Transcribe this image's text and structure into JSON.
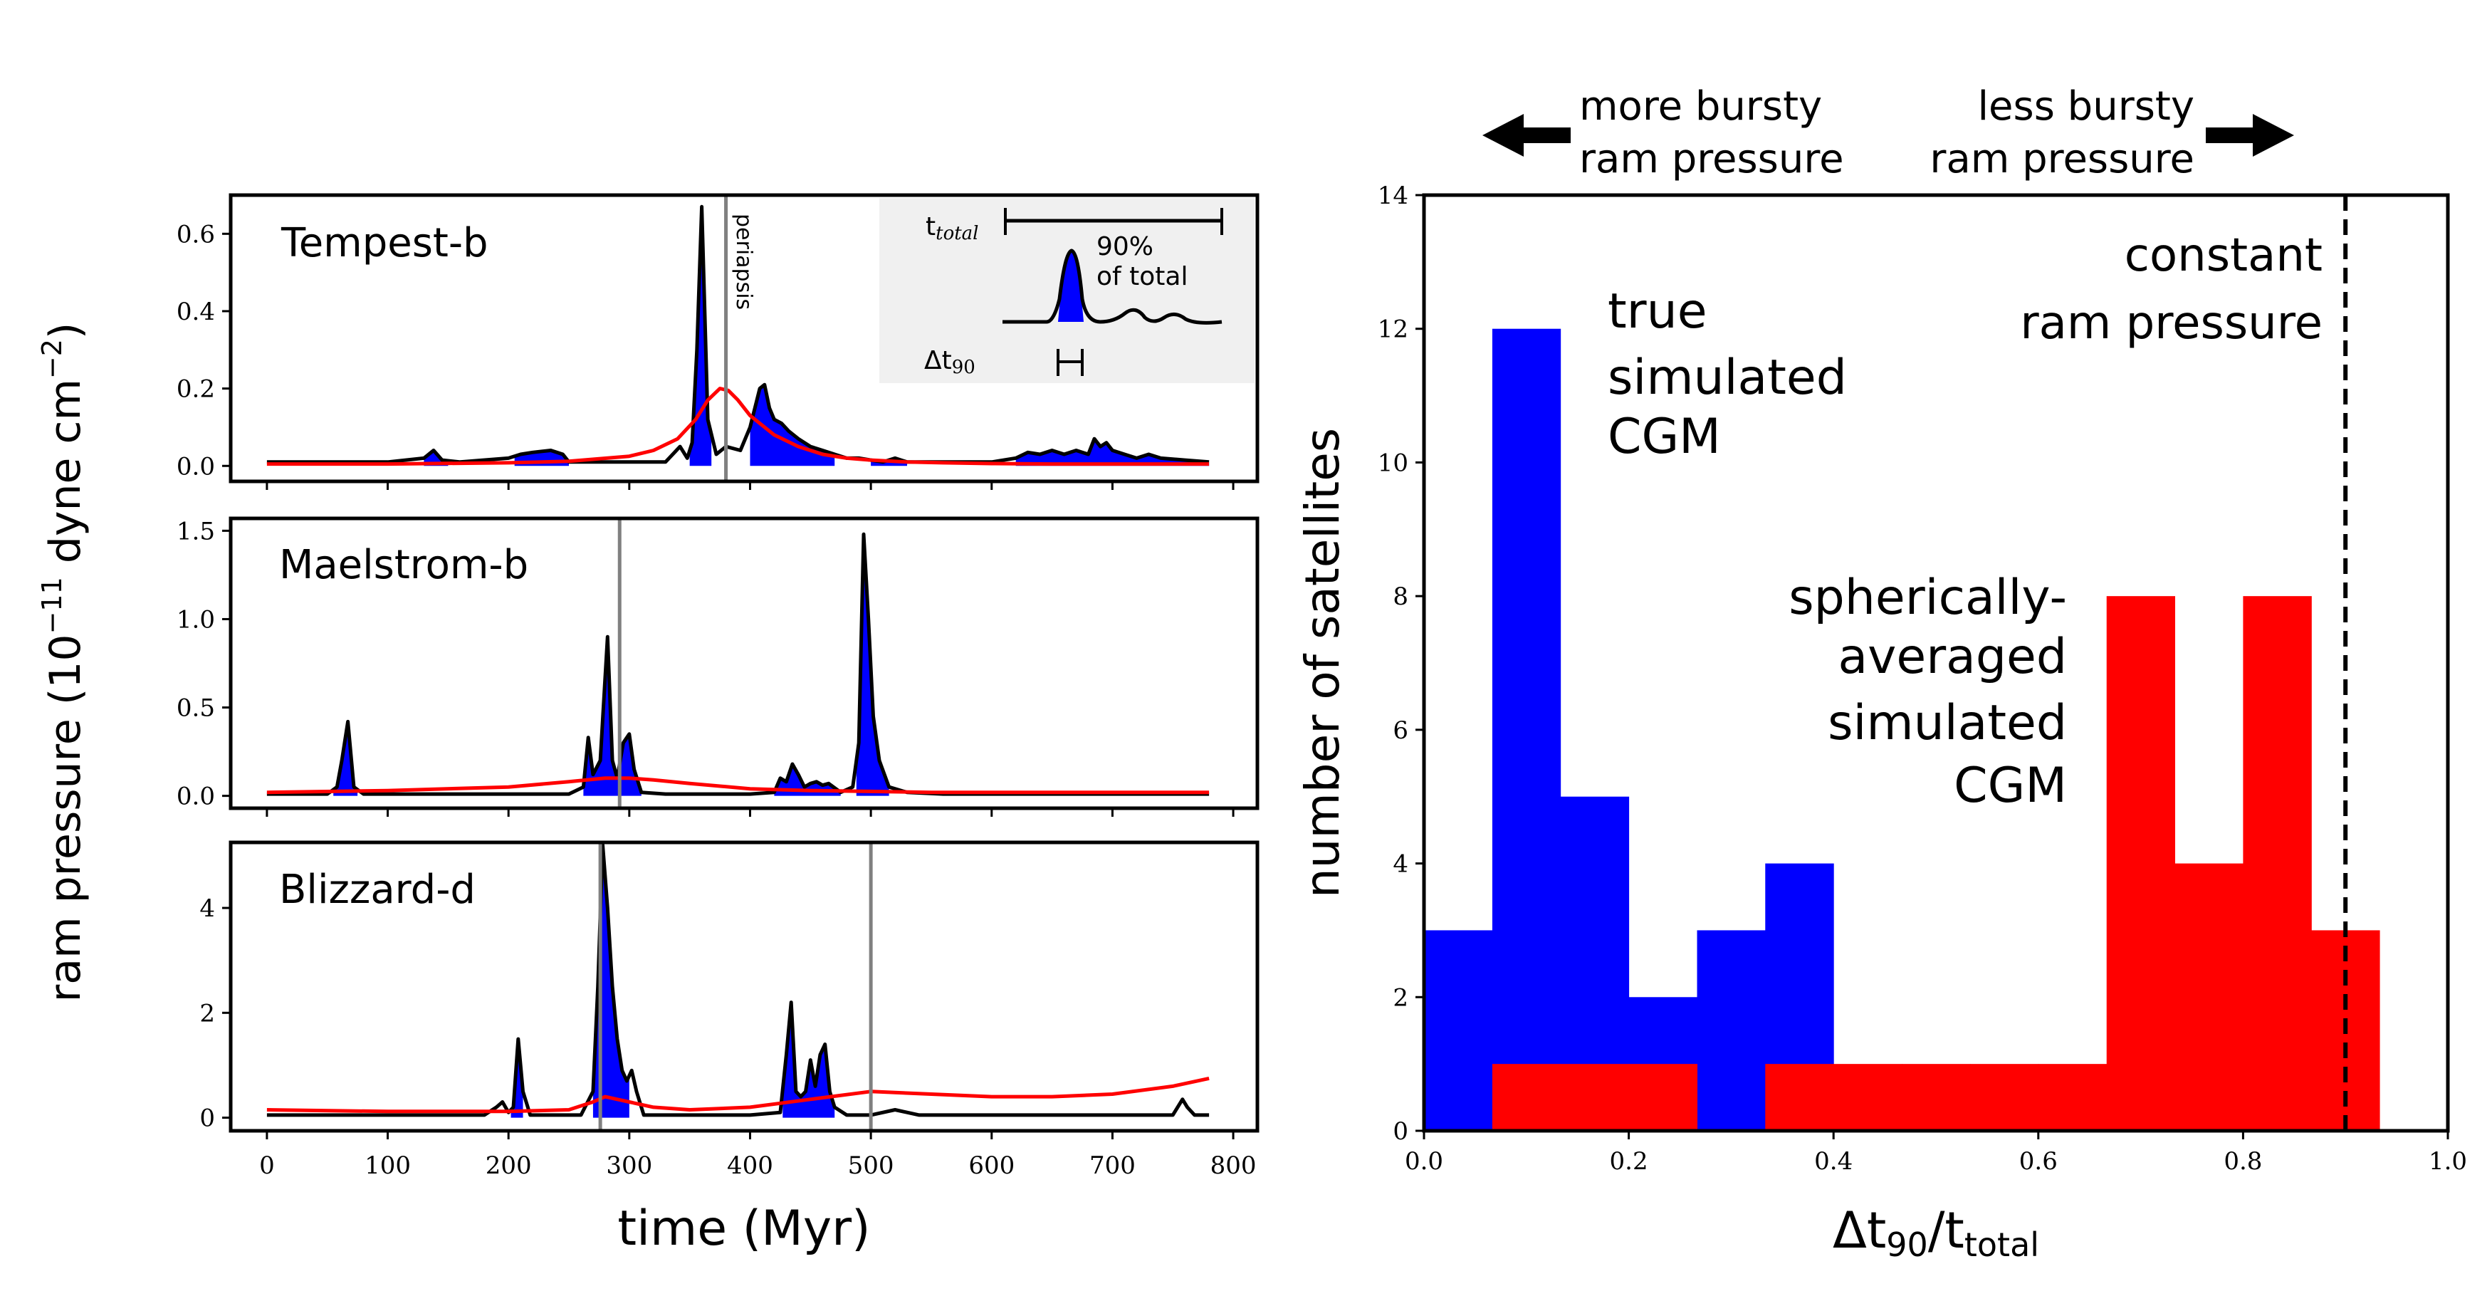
{
  "colors": {
    "true_cgm": "#0000ff",
    "spherical_cgm": "#ff0000",
    "line": "#000000",
    "periapsis": "#808080",
    "inset_bg": "#f0f0f0"
  },
  "chart_data": [
    {
      "type": "line",
      "panel": "Tempest-b",
      "title": "Tempest-b",
      "xlim": [
        -30,
        820
      ],
      "ylim": [
        -0.04,
        0.7
      ],
      "yticks": [
        "0.0",
        "0.2",
        "0.4",
        "0.6"
      ],
      "ytick_values": [
        0,
        0.2,
        0.4,
        0.6
      ],
      "periapsis_times": [
        380
      ],
      "periapsis_label": "periapsis",
      "inset": {
        "total_label": "t",
        "total_sub": "total",
        "pct_label": "90%",
        "pct_label2": "of total",
        "delta_label": "Δt",
        "delta_sub": "90"
      },
      "series": [
        {
          "name": "true simulated CGM",
          "color": "#000000",
          "x": [
            0,
            100,
            130,
            138,
            145,
            160,
            200,
            210,
            220,
            235,
            245,
            250,
            260,
            300,
            330,
            342,
            348,
            352,
            356,
            360,
            365,
            372,
            380,
            392,
            400,
            408,
            412,
            416,
            420,
            426,
            432,
            440,
            450,
            460,
            470,
            480,
            490,
            500,
            510,
            520,
            530,
            540,
            560,
            600,
            620,
            630,
            640,
            650,
            660,
            670,
            680,
            685,
            690,
            695,
            700,
            710,
            720,
            730,
            740,
            760,
            780
          ],
          "y": [
            0.01,
            0.01,
            0.02,
            0.04,
            0.015,
            0.01,
            0.02,
            0.03,
            0.035,
            0.04,
            0.03,
            0.01,
            0.01,
            0.01,
            0.01,
            0.05,
            0.02,
            0.06,
            0.3,
            0.67,
            0.12,
            0.03,
            0.05,
            0.04,
            0.1,
            0.2,
            0.21,
            0.15,
            0.12,
            0.11,
            0.09,
            0.07,
            0.05,
            0.04,
            0.03,
            0.02,
            0.02,
            0.015,
            0.01,
            0.02,
            0.01,
            0.01,
            0.01,
            0.01,
            0.02,
            0.035,
            0.03,
            0.04,
            0.03,
            0.04,
            0.03,
            0.07,
            0.05,
            0.06,
            0.04,
            0.03,
            0.02,
            0.03,
            0.02,
            0.015,
            0.01
          ]
        },
        {
          "name": "spherically-averaged simulated CGM",
          "color": "#ff0000",
          "x": [
            0,
            100,
            200,
            250,
            300,
            320,
            340,
            355,
            365,
            375,
            382,
            390,
            400,
            420,
            440,
            460,
            480,
            500,
            530,
            560,
            600,
            650,
            700,
            780
          ],
          "y": [
            0.005,
            0.005,
            0.008,
            0.012,
            0.025,
            0.04,
            0.07,
            0.12,
            0.17,
            0.2,
            0.195,
            0.17,
            0.13,
            0.08,
            0.05,
            0.03,
            0.02,
            0.015,
            0.01,
            0.008,
            0.006,
            0.005,
            0.005,
            0.005
          ]
        }
      ],
      "fill_intervals": [
        [
          130,
          150
        ],
        [
          205,
          250
        ],
        [
          350,
          368
        ],
        [
          400,
          470
        ],
        [
          500,
          530
        ],
        [
          620,
          780
        ]
      ]
    },
    {
      "type": "line",
      "panel": "Maelstrom-b",
      "title": "Maelstrom-b",
      "xlim": [
        -30,
        820
      ],
      "ylim": [
        -0.07,
        1.57
      ],
      "yticks": [
        "0.0",
        "0.5",
        "1.0",
        "1.5"
      ],
      "ytick_values": [
        0,
        0.5,
        1.0,
        1.5
      ],
      "periapsis_times": [
        292
      ],
      "series": [
        {
          "name": "true simulated CGM",
          "color": "#000000",
          "x": [
            0,
            50,
            58,
            62,
            67,
            72,
            80,
            100,
            200,
            250,
            262,
            266,
            270,
            276,
            282,
            286,
            290,
            295,
            300,
            304,
            310,
            330,
            400,
            420,
            425,
            430,
            435,
            440,
            445,
            450,
            455,
            460,
            465,
            475,
            485,
            490,
            494,
            498,
            502,
            507,
            515,
            530,
            560,
            600,
            700,
            780
          ],
          "y": [
            0.01,
            0.01,
            0.05,
            0.2,
            0.42,
            0.05,
            0.01,
            0.01,
            0.01,
            0.01,
            0.05,
            0.33,
            0.12,
            0.2,
            0.9,
            0.2,
            0.1,
            0.3,
            0.35,
            0.15,
            0.02,
            0.01,
            0.01,
            0.02,
            0.1,
            0.08,
            0.18,
            0.12,
            0.05,
            0.07,
            0.08,
            0.06,
            0.07,
            0.02,
            0.05,
            0.3,
            1.48,
            1.0,
            0.45,
            0.2,
            0.05,
            0.02,
            0.01,
            0.01,
            0.01,
            0.01
          ]
        },
        {
          "name": "spherically-averaged simulated CGM",
          "color": "#ff0000",
          "x": [
            0,
            100,
            200,
            250,
            280,
            300,
            320,
            350,
            400,
            450,
            500,
            550,
            600,
            700,
            780
          ],
          "y": [
            0.02,
            0.03,
            0.05,
            0.08,
            0.1,
            0.1,
            0.09,
            0.07,
            0.04,
            0.03,
            0.025,
            0.02,
            0.02,
            0.02,
            0.02
          ]
        }
      ],
      "fill_intervals": [
        [
          55,
          75
        ],
        [
          262,
          310
        ],
        [
          420,
          475
        ],
        [
          488,
          515
        ]
      ]
    },
    {
      "type": "line",
      "panel": "Blizzard-d",
      "title": "Blizzard-d",
      "xlim": [
        -30,
        820
      ],
      "ylim": [
        -0.25,
        5.25
      ],
      "yticks": [
        "0",
        "2",
        "4"
      ],
      "ytick_values": [
        0,
        2,
        4
      ],
      "periapsis_times": [
        276,
        500
      ],
      "series": [
        {
          "name": "true simulated CGM",
          "color": "#000000",
          "x": [
            0,
            100,
            180,
            190,
            195,
            200,
            204,
            208,
            212,
            218,
            240,
            260,
            270,
            274,
            278,
            282,
            286,
            290,
            294,
            298,
            302,
            306,
            312,
            330,
            400,
            425,
            430,
            434,
            438,
            442,
            446,
            450,
            454,
            458,
            462,
            466,
            470,
            480,
            500,
            520,
            540,
            600,
            700,
            750,
            758,
            762,
            768,
            780
          ],
          "y": [
            0.05,
            0.05,
            0.05,
            0.2,
            0.3,
            0.1,
            0.2,
            1.5,
            0.5,
            0.05,
            0.05,
            0.05,
            0.5,
            2.5,
            5.2,
            4.0,
            2.5,
            1.5,
            0.9,
            0.7,
            0.9,
            0.5,
            0.05,
            0.05,
            0.05,
            0.1,
            1.2,
            2.2,
            0.5,
            0.4,
            0.5,
            1.1,
            0.6,
            1.2,
            1.4,
            0.5,
            0.2,
            0.05,
            0.05,
            0.15,
            0.05,
            0.05,
            0.05,
            0.05,
            0.35,
            0.2,
            0.05,
            0.05
          ]
        },
        {
          "name": "spherically-averaged simulated CGM",
          "color": "#ff0000",
          "x": [
            0,
            100,
            200,
            250,
            270,
            280,
            290,
            300,
            320,
            350,
            400,
            450,
            500,
            550,
            600,
            650,
            700,
            750,
            780
          ],
          "y": [
            0.15,
            0.12,
            0.12,
            0.15,
            0.3,
            0.4,
            0.35,
            0.3,
            0.2,
            0.15,
            0.2,
            0.35,
            0.5,
            0.45,
            0.4,
            0.4,
            0.45,
            0.6,
            0.75
          ]
        }
      ],
      "fill_intervals": [
        [
          202,
          212
        ],
        [
          270,
          300
        ],
        [
          427,
          470
        ]
      ]
    },
    {
      "type": "bar",
      "title": "",
      "xlabel": "Δt90/ttotal",
      "xlabel_main": "Δt",
      "xlabel_sub": "90",
      "xlabel_slash": "/t",
      "xlabel_sub2": "total",
      "ylabel": "number of satellites",
      "xlim": [
        0,
        1.0
      ],
      "ylim": [
        0,
        14
      ],
      "xticks": [
        "0.0",
        "0.2",
        "0.4",
        "0.6",
        "0.8",
        "1.0"
      ],
      "xtick_values": [
        0,
        0.2,
        0.4,
        0.6,
        0.8,
        1.0
      ],
      "yticks": [
        "0",
        "2",
        "4",
        "6",
        "8",
        "10",
        "12",
        "14"
      ],
      "ytick_values": [
        0,
        2,
        4,
        6,
        8,
        10,
        12,
        14
      ],
      "bin_edges": [
        0.0,
        0.0667,
        0.1333,
        0.2,
        0.2667,
        0.3333,
        0.4,
        0.4667,
        0.5333,
        0.6,
        0.6667,
        0.7333,
        0.8,
        0.8667,
        0.9333
      ],
      "series": [
        {
          "name": "true simulated CGM",
          "color": "#0000ff",
          "values": [
            3,
            12,
            5,
            2,
            3,
            4,
            0,
            0,
            0,
            0,
            0,
            0,
            0,
            0
          ]
        },
        {
          "name": "spherically-averaged simulated CGM",
          "color": "#ff0000",
          "values": [
            0,
            1,
            1,
            1,
            0,
            1,
            1,
            1,
            1,
            1,
            8,
            4,
            8,
            3
          ]
        }
      ],
      "constant_line": 0.9,
      "annotations": {
        "more_bursty_1": "more bursty",
        "more_bursty_2": "ram pressure",
        "less_bursty_1": "less bursty",
        "less_bursty_2": "ram pressure",
        "constant_1": "constant",
        "constant_2": "ram pressure",
        "true_1": "true",
        "true_2": "simulated",
        "true_3": "CGM",
        "sph_1": "spherically-",
        "sph_2": "averaged",
        "sph_3": "simulated",
        "sph_4": "CGM"
      }
    }
  ],
  "left_axes": {
    "xlabel": "time (Myr)",
    "ylabel_main": "ram pressure (10",
    "ylabel_exp": "−11",
    "ylabel_mid": " dyne cm",
    "ylabel_exp2": "−2",
    "ylabel_end": ")",
    "xticks": [
      "0",
      "100",
      "200",
      "300",
      "400",
      "500",
      "600",
      "700",
      "800"
    ],
    "xtick_values": [
      0,
      100,
      200,
      300,
      400,
      500,
      600,
      700,
      800
    ]
  }
}
